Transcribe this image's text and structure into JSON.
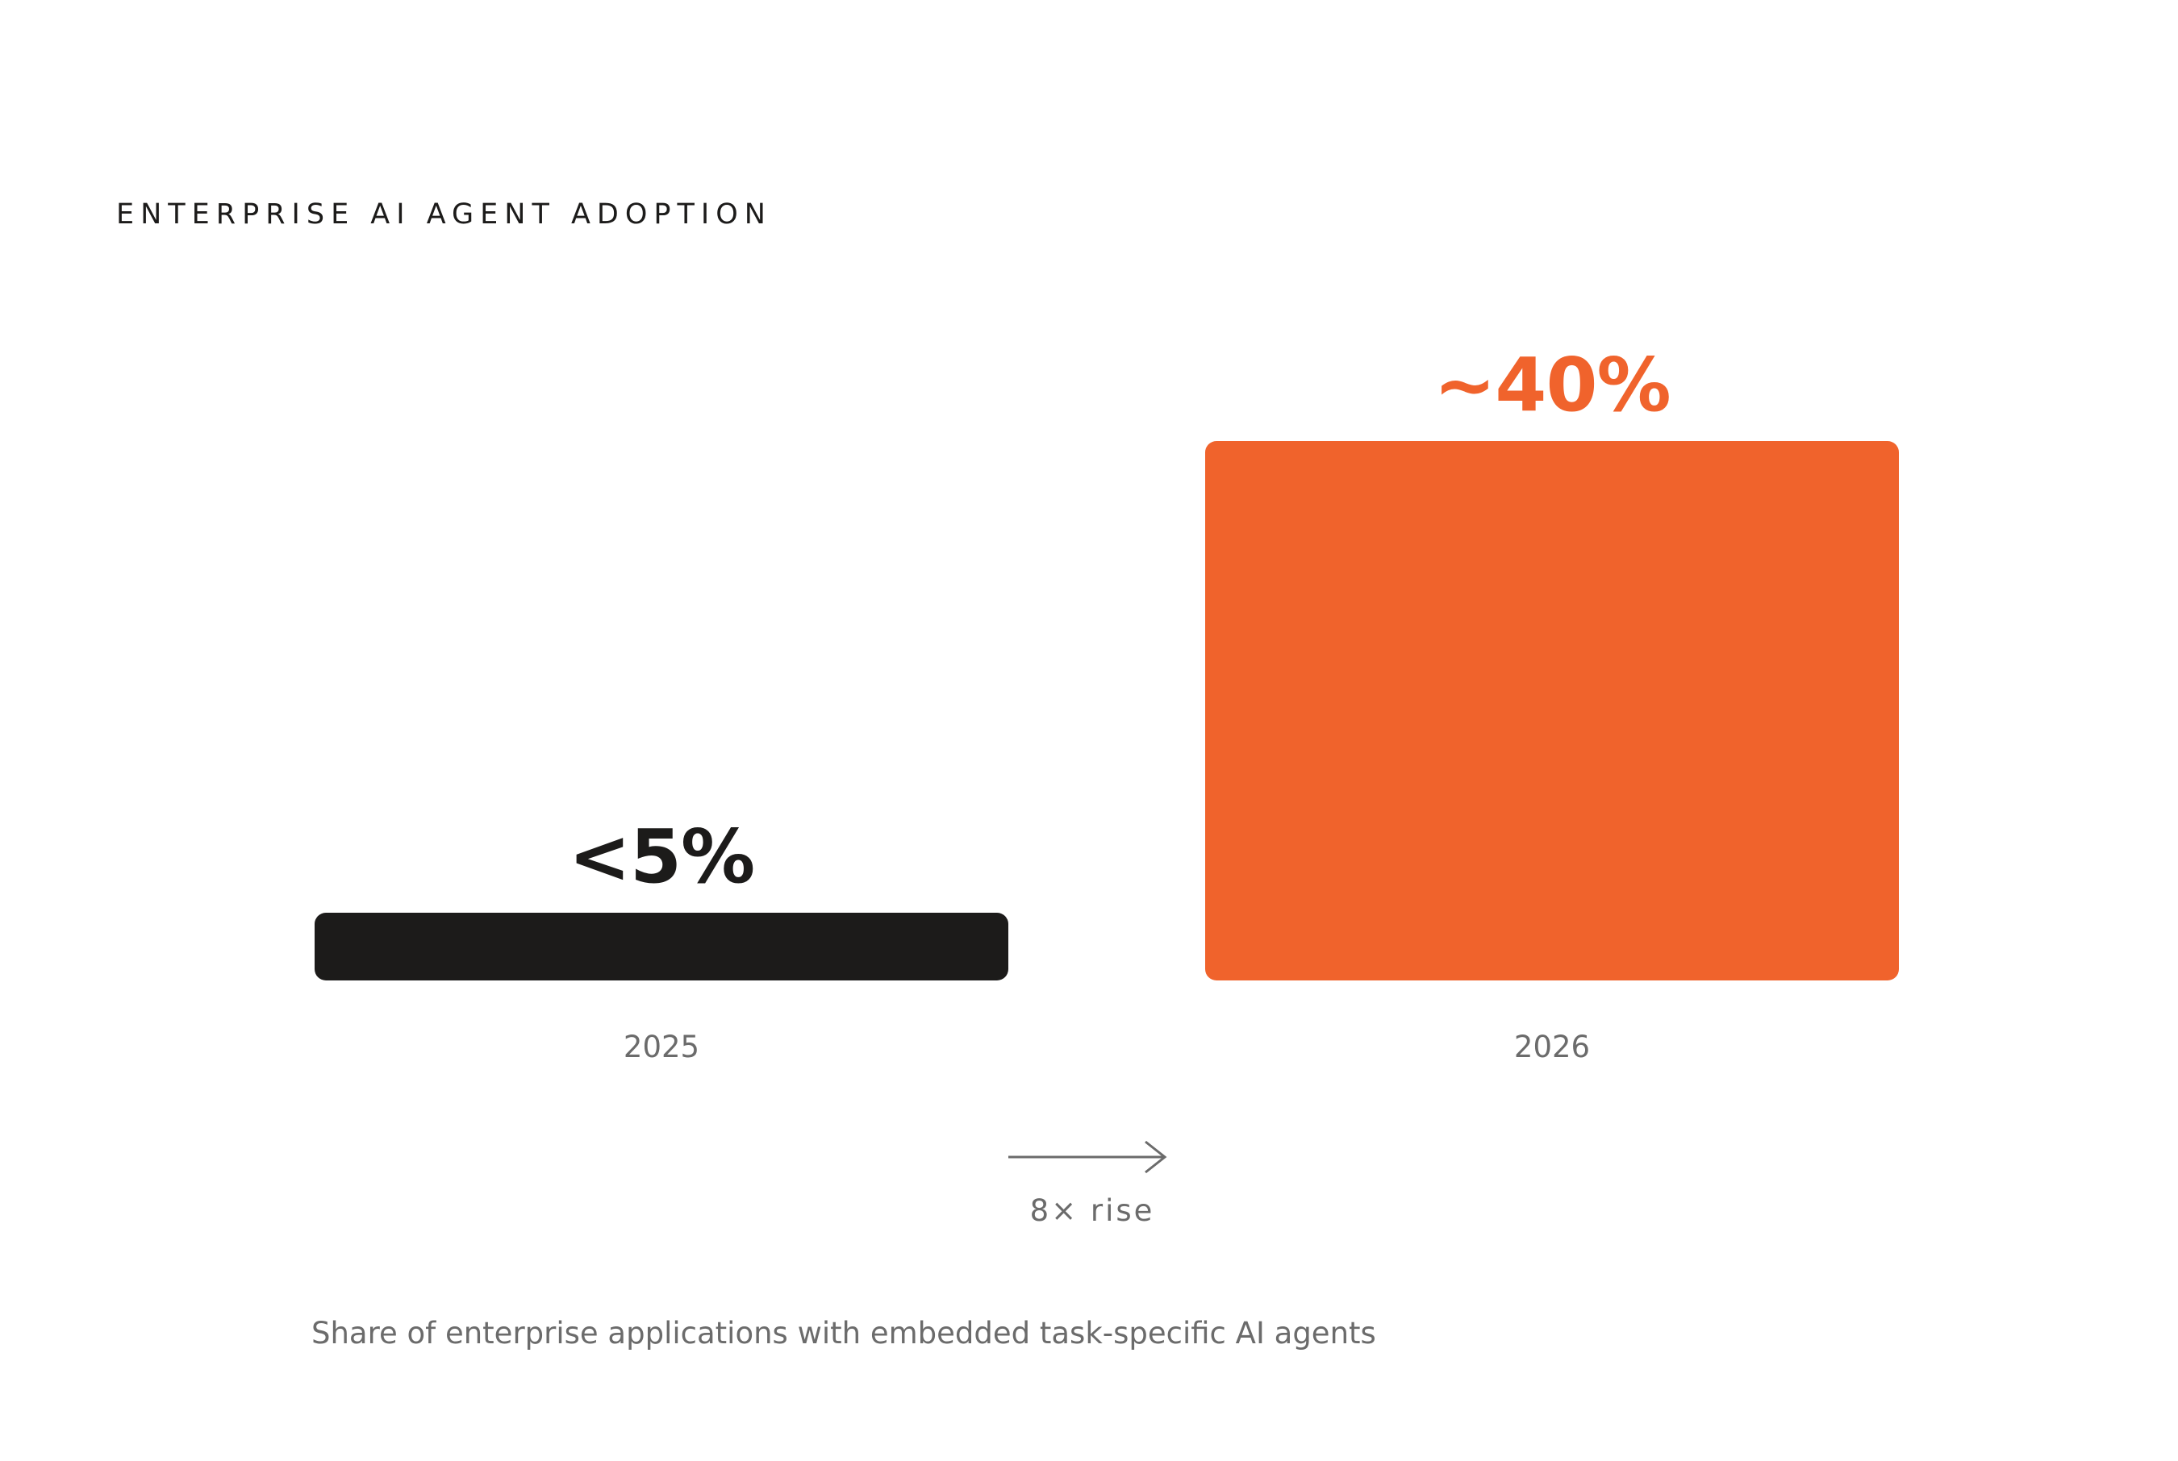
{
  "chart_data": {
    "type": "bar",
    "title": "ENTERPRISE AI AGENT ADOPTION",
    "categories": [
      "2025",
      "2026"
    ],
    "values": [
      5,
      40
    ],
    "value_labels": [
      "<5%",
      "~40%"
    ],
    "bar_colors": [
      "#1c1b1a",
      "#f0632c"
    ],
    "xlabel": "",
    "ylabel": "",
    "ylim": [
      0,
      40
    ],
    "grid": false,
    "annotation": "8× rise",
    "caption": "Share of enterprise applications with embedded task-specific AI agents"
  }
}
